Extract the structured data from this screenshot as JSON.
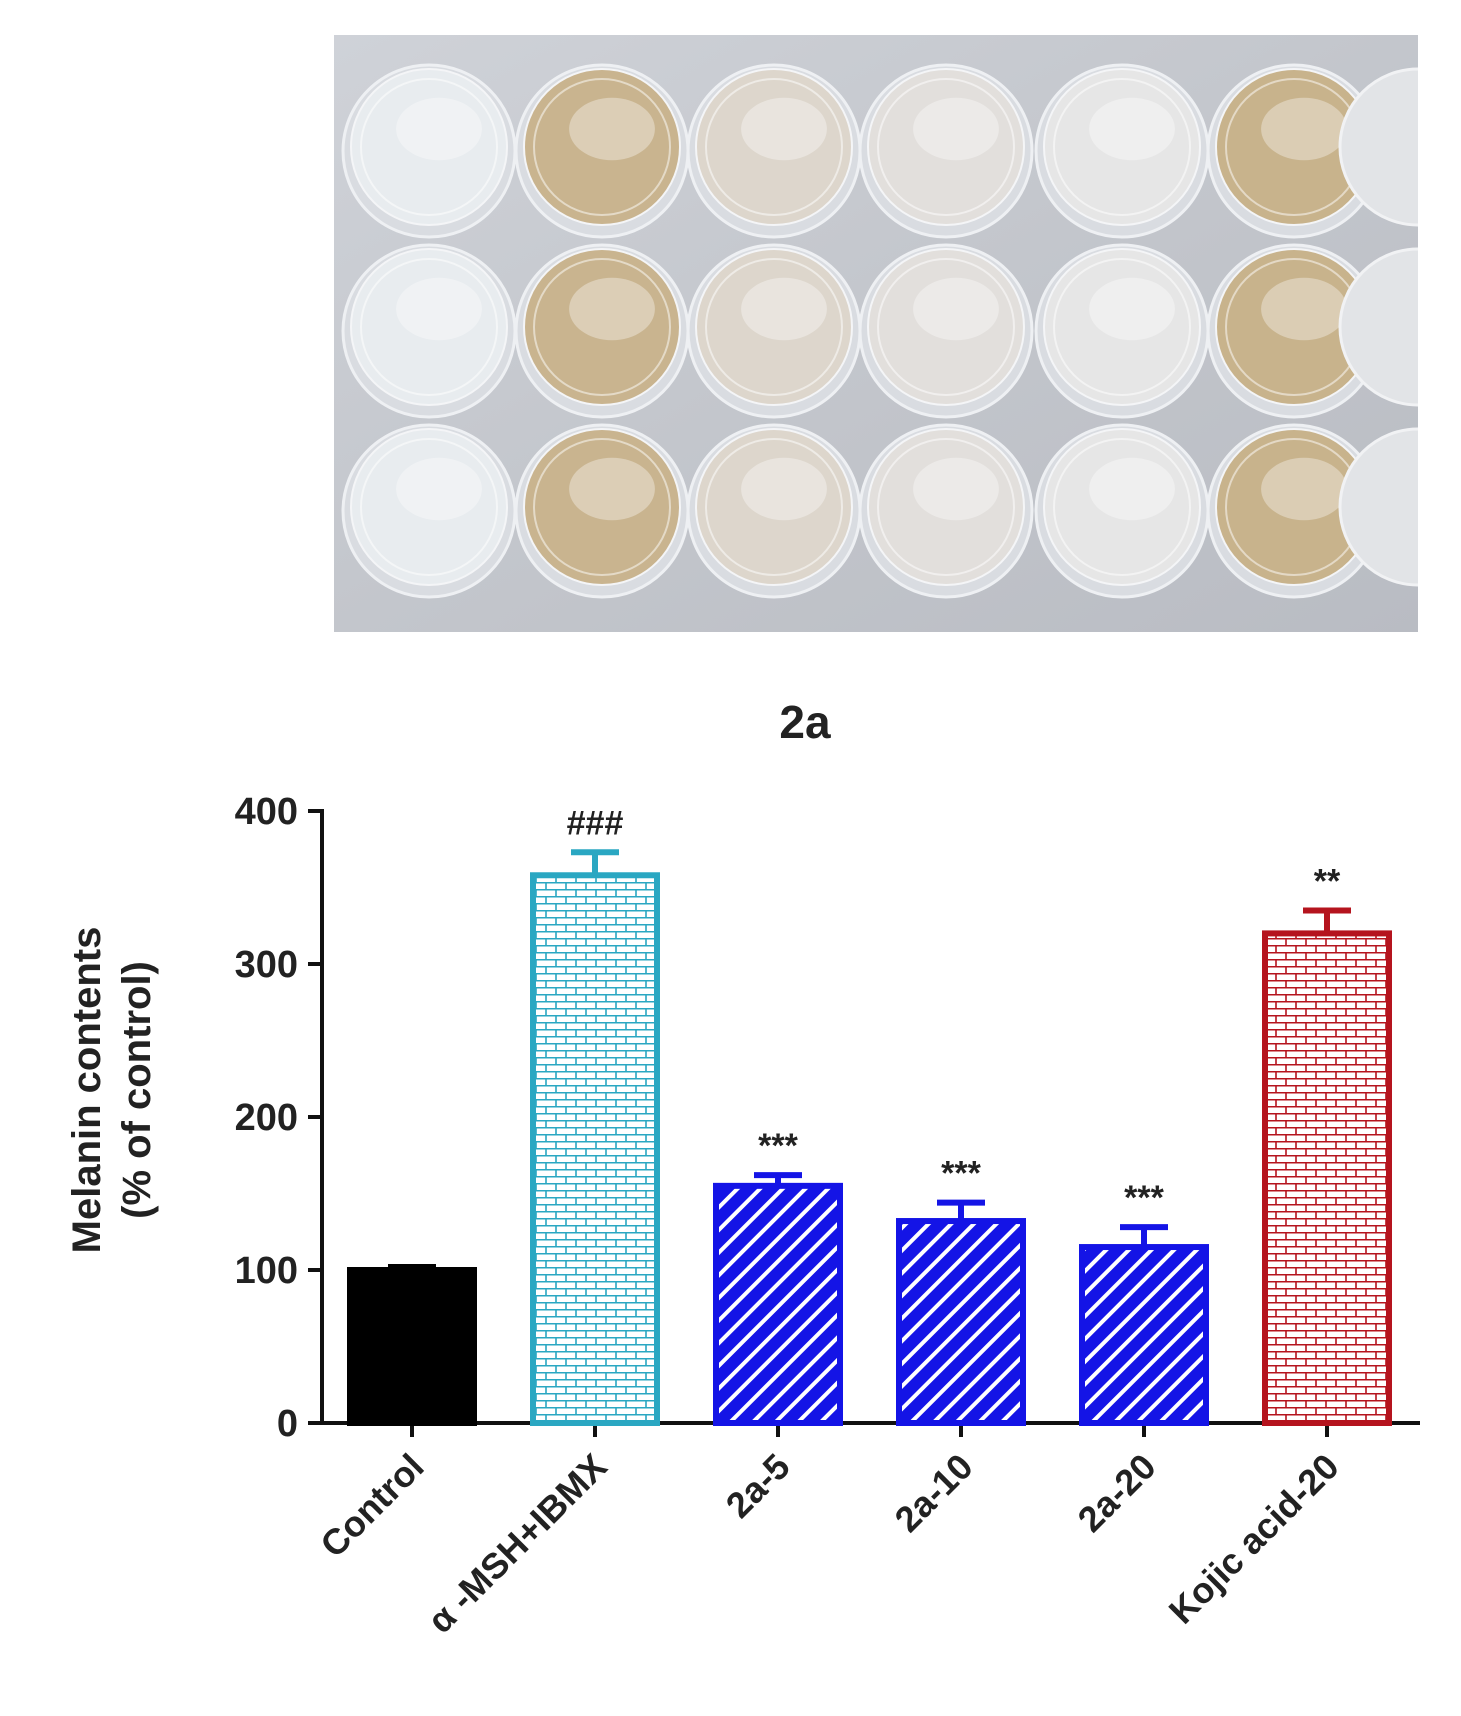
{
  "chart_data": {
    "type": "bar",
    "title": "2a",
    "ylabel_lines": [
      "Melanin contents",
      "(% of control)"
    ],
    "xlabel": "",
    "ylim": [
      0,
      400
    ],
    "yticks": [
      0,
      100,
      200,
      300,
      400
    ],
    "categories": [
      "Control",
      "α -MSH+IBMX",
      "2a-5",
      "2a-10",
      "2a-20",
      "Kojic acid-20"
    ],
    "values": [
      100,
      358,
      155,
      132,
      115,
      320
    ],
    "errors": [
      2,
      15,
      7,
      12,
      13,
      15
    ],
    "significance": [
      "",
      "###",
      "***",
      "***",
      "***",
      "**"
    ],
    "colors": [
      "#000000",
      "#2aa7c2",
      "#1414e6",
      "#1414e6",
      "#1414e6",
      "#b5141e"
    ],
    "patterns": [
      "solid",
      "brick",
      "hatch",
      "hatch",
      "hatch",
      "brick"
    ],
    "grid": false
  },
  "photo": {
    "columns": 6,
    "rows": 3,
    "well_tints": [
      "#e8ecef",
      "#c9b48f",
      "#ddd6cc",
      "#e2dfdc",
      "#e6e6e6",
      "#c8b38c"
    ]
  }
}
